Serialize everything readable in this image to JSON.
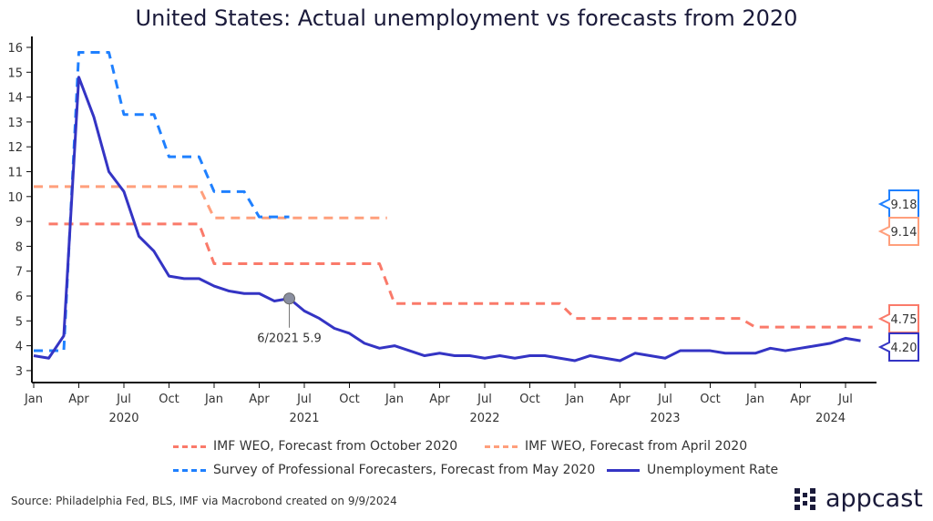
{
  "title": "United States: Actual unemployment vs forecasts from 2020",
  "source": "Source: Philadelphia Fed, BLS, IMF via Macrobond created on 9/9/2024",
  "logo": "appcast",
  "chart_data": {
    "type": "line",
    "title": "United States: Actual unemployment vs forecasts from 2020",
    "ylim": [
      3,
      16
    ],
    "yticks": [
      3,
      4,
      5,
      6,
      7,
      8,
      9,
      10,
      11,
      12,
      13,
      14,
      15,
      16
    ],
    "x_start": "2020-01",
    "xtick_labels": [
      "Jan",
      "Apr",
      "Jul",
      "Oct",
      "Jan",
      "Apr",
      "Jul",
      "Oct",
      "Jan",
      "Apr",
      "Jul",
      "Oct",
      "Jan",
      "Apr",
      "Jul",
      "Oct",
      "Jan",
      "Apr",
      "Jul"
    ],
    "year_labels": [
      {
        "label": "2020",
        "month": 6
      },
      {
        "label": "2021",
        "month": 18
      },
      {
        "label": "2022",
        "month": 30
      },
      {
        "label": "2023",
        "month": 42
      },
      {
        "label": "2024",
        "month": 53
      }
    ],
    "series": [
      {
        "name": "IMF WEO, Forecast from October 2020",
        "color": "#fa7a6a",
        "dashed": true,
        "points": [
          [
            1,
            8.9
          ],
          [
            11,
            8.9
          ],
          [
            12,
            7.3
          ],
          [
            23,
            7.3
          ],
          [
            24,
            5.7
          ],
          [
            35,
            5.7
          ],
          [
            36,
            5.1
          ],
          [
            47,
            5.1
          ],
          [
            48,
            4.75
          ],
          [
            55.8,
            4.75
          ]
        ],
        "end_label": "4.75"
      },
      {
        "name": "IMF WEO, Forecast from April 2020",
        "color": "#ff9f7c",
        "dashed": true,
        "points": [
          [
            0,
            10.4
          ],
          [
            11,
            10.4
          ],
          [
            12,
            9.14
          ],
          [
            23.5,
            9.14
          ]
        ],
        "end_label": "9.14"
      },
      {
        "name": "Survey of Professional Forecasters, Forecast from May 2020",
        "color": "#1f80ff",
        "dashed": true,
        "points": [
          [
            0,
            3.8
          ],
          [
            2,
            3.8
          ],
          [
            3,
            15.8
          ],
          [
            5,
            15.8
          ],
          [
            6,
            13.3
          ],
          [
            8,
            13.3
          ],
          [
            9,
            11.6
          ],
          [
            11,
            11.6
          ],
          [
            12,
            10.2
          ],
          [
            14,
            10.2
          ],
          [
            15,
            9.18
          ],
          [
            17,
            9.18
          ]
        ],
        "end_label": "9.18"
      },
      {
        "name": "Unemployment Rate",
        "color": "#3434c4",
        "dashed": false,
        "values": [
          3.6,
          3.5,
          4.4,
          14.8,
          13.2,
          11.0,
          10.2,
          8.4,
          7.8,
          6.8,
          6.7,
          6.7,
          6.4,
          6.2,
          6.1,
          6.1,
          5.8,
          5.9,
          5.4,
          5.1,
          4.7,
          4.5,
          4.1,
          3.9,
          4.0,
          3.8,
          3.6,
          3.7,
          3.6,
          3.6,
          3.5,
          3.6,
          3.5,
          3.6,
          3.6,
          3.5,
          3.4,
          3.6,
          3.5,
          3.4,
          3.7,
          3.6,
          3.5,
          3.8,
          3.8,
          3.8,
          3.7,
          3.7,
          3.7,
          3.9,
          3.8,
          3.9,
          4.0,
          4.1,
          4.3,
          4.2
        ],
        "end_label": "4.20"
      }
    ],
    "annotation": {
      "label": "6/2021 5.9",
      "month": 17,
      "value": 5.9
    }
  }
}
